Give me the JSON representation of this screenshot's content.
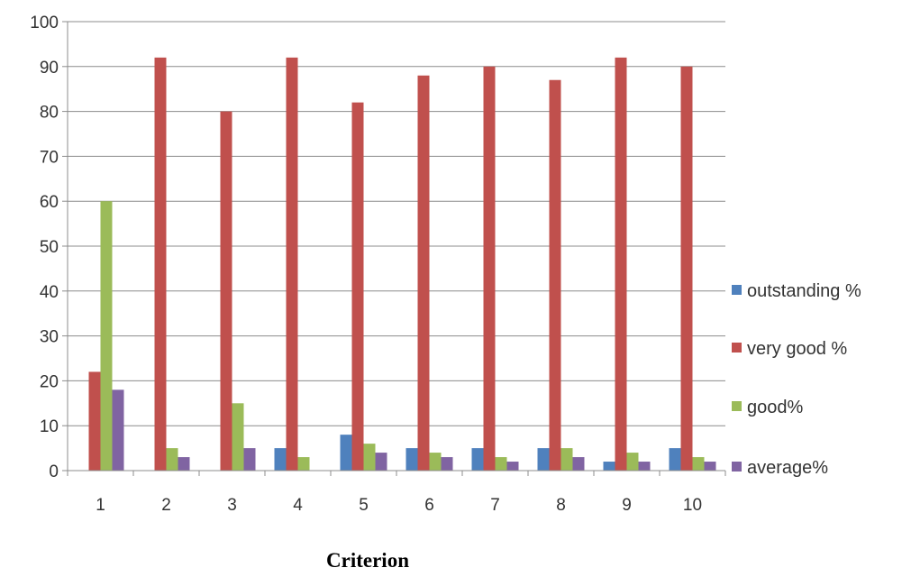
{
  "chart_data": {
    "type": "bar",
    "categories": [
      "1",
      "2",
      "3",
      "4",
      "5",
      "6",
      "7",
      "8",
      "9",
      "10"
    ],
    "series": [
      {
        "name": "outstanding %",
        "color": "#4F81BD",
        "values": [
          0,
          0,
          0,
          5,
          8,
          5,
          5,
          5,
          2,
          5
        ]
      },
      {
        "name": "very good %",
        "color": "#C0504D",
        "values": [
          22,
          92,
          80,
          92,
          82,
          88,
          90,
          87,
          92,
          90
        ]
      },
      {
        "name": "good%",
        "color": "#9BBB59",
        "values": [
          60,
          5,
          15,
          3,
          6,
          4,
          3,
          5,
          4,
          3
        ]
      },
      {
        "name": "average%",
        "color": "#8064A2",
        "values": [
          18,
          3,
          5,
          0,
          4,
          3,
          2,
          3,
          2,
          2
        ]
      }
    ],
    "ylim": [
      0,
      100
    ],
    "yticks": [
      0,
      10,
      20,
      30,
      40,
      50,
      60,
      70,
      80,
      90,
      100
    ],
    "xlabel": "Criterion",
    "ylabel": "",
    "grid": "horizontal",
    "legend_position": "right"
  }
}
